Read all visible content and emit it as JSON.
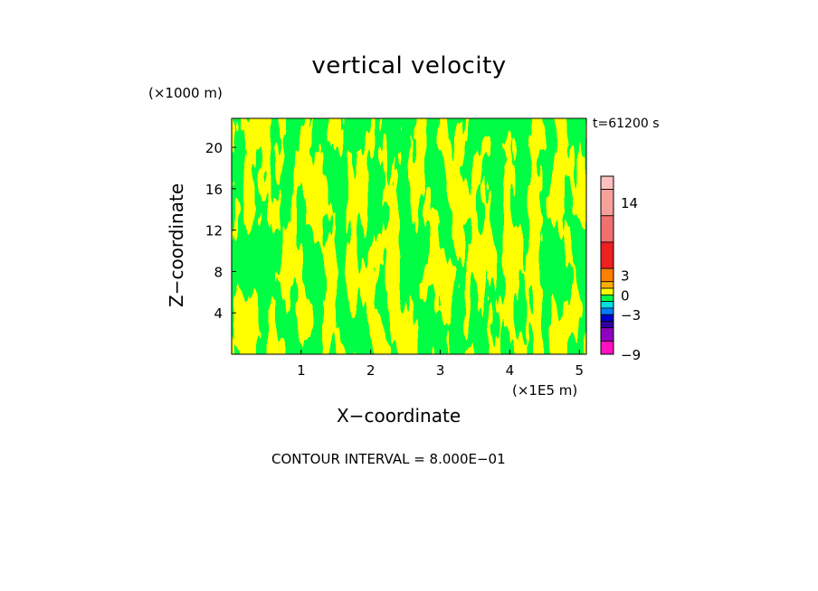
{
  "chart_data": {
    "type": "heatmap",
    "title": "vertical velocity",
    "xlabel": "X−coordinate",
    "ylabel": "Z−coordinate",
    "x_unit": "(×1E5 m)",
    "y_unit": "(×1000 m)",
    "time_label": "t=61200 s",
    "footer": "CONTOUR INTERVAL = 8.000E−01",
    "xlim": [
      0,
      5.1
    ],
    "ylim": [
      0,
      22.8
    ],
    "x_ticks": [
      1,
      2,
      3,
      4,
      5
    ],
    "y_ticks": [
      4,
      8,
      12,
      16,
      20
    ],
    "field_colors": {
      "positive": "#ffff00",
      "negative": "#00ff44"
    },
    "colorbar": {
      "min": -9,
      "max": 18,
      "labels": [
        {
          "value": 14,
          "text": "14"
        },
        {
          "value": 3,
          "text": "3"
        },
        {
          "value": 0,
          "text": "0"
        },
        {
          "value": -3,
          "text": "−3"
        },
        {
          "value": -9,
          "text": "−9"
        }
      ],
      "segments": [
        {
          "from": 16,
          "to": 18,
          "color": "#ffc0c0"
        },
        {
          "from": 12,
          "to": 16,
          "color": "#f6a09a"
        },
        {
          "from": 8,
          "to": 12,
          "color": "#f07070"
        },
        {
          "from": 4,
          "to": 8,
          "color": "#ee2020"
        },
        {
          "from": 2,
          "to": 4,
          "color": "#ff8000"
        },
        {
          "from": 1,
          "to": 2,
          "color": "#ffb000"
        },
        {
          "from": 0,
          "to": 1,
          "color": "#ffff00"
        },
        {
          "from": -1,
          "to": 0,
          "color": "#00ff44"
        },
        {
          "from": -2,
          "to": -1,
          "color": "#00e0e0"
        },
        {
          "from": -3,
          "to": -2,
          "color": "#0080ff"
        },
        {
          "from": -4,
          "to": -3,
          "color": "#0000d0"
        },
        {
          "from": -5,
          "to": -4,
          "color": "#3000a0"
        },
        {
          "from": -7,
          "to": -5,
          "color": "#9000c0"
        },
        {
          "from": -9,
          "to": -7,
          "color": "#ff10c0"
        }
      ]
    }
  }
}
